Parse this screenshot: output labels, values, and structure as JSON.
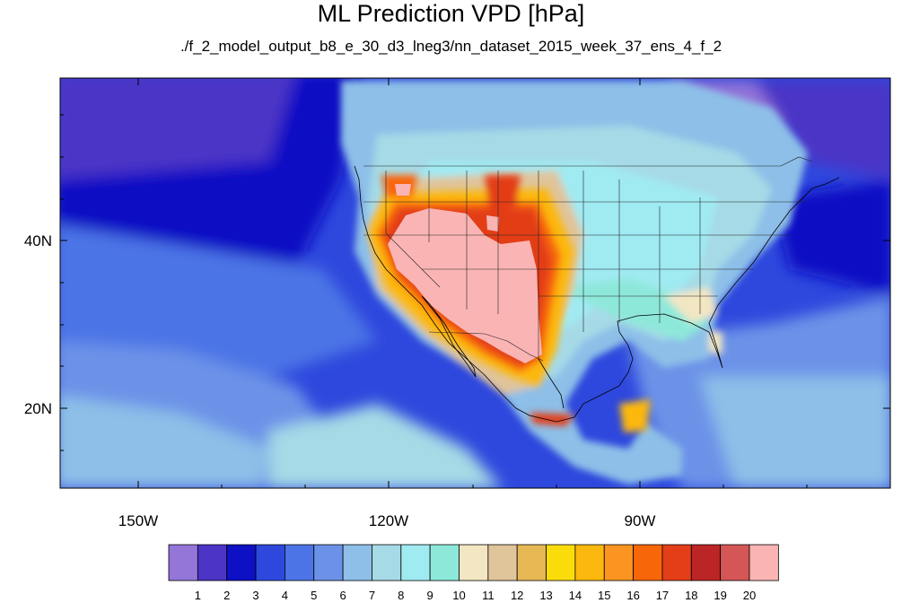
{
  "title": "ML Prediction VPD [hPa]",
  "subtitle": "./f_2_model_output_b8_e_30_d3_lneg3/nn_dataset_2015_week_37_ens_4_f_2",
  "map": {
    "projection": "cylindrical-equidistant",
    "lon_range": [
      -166,
      -66
    ],
    "lat_range": [
      10,
      59
    ],
    "x_tick_labels": [
      "150W",
      "120W",
      "90W"
    ],
    "y_tick_labels": [
      "40N",
      "20N"
    ],
    "boundaries": [
      "coastlines",
      "national borders",
      "US state borders"
    ]
  },
  "colorbar": {
    "labels": [
      "1",
      "2",
      "3",
      "4",
      "5",
      "6",
      "7",
      "8",
      "9",
      "10",
      "11",
      "12",
      "13",
      "14",
      "15",
      "16",
      "17",
      "18",
      "19",
      "20"
    ],
    "colors": [
      "#9475d8",
      "#4b34c6",
      "#0d10c4",
      "#2e48dd",
      "#4c74e6",
      "#6c92e8",
      "#8dbfe8",
      "#a6dae6",
      "#a0eaf2",
      "#8ee8da",
      "#f3e6c2",
      "#e0c49a",
      "#e6b854",
      "#fadc0a",
      "#fcb80e",
      "#fb9420",
      "#f8660a",
      "#e33e18",
      "#bb2525",
      "#d45656",
      "#fab4b4"
    ]
  }
}
